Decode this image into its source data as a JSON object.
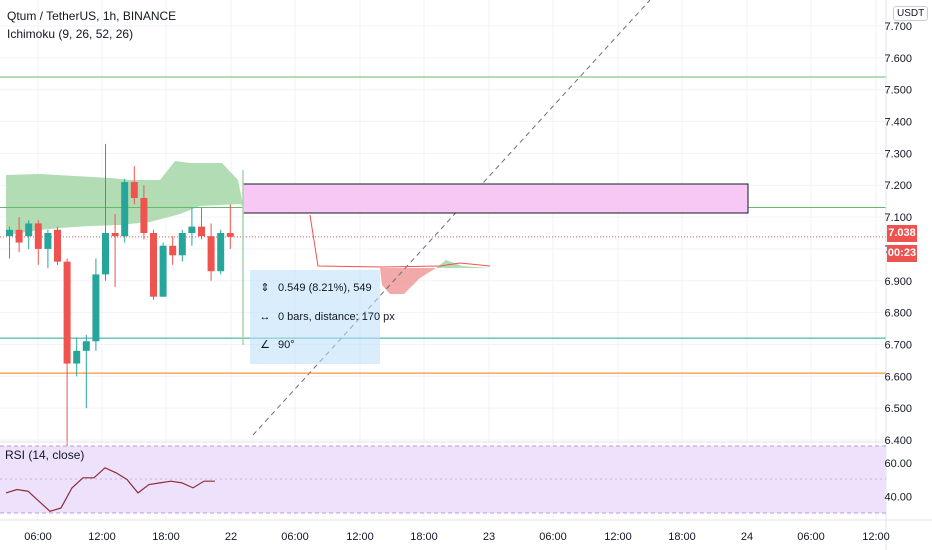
{
  "header": {
    "symbol_line": "Qtum / TetherUS, 1h, BINANCE",
    "indicator_label": "Ichimoku (9, 26, 52, 26)",
    "currency_badge": "USDT"
  },
  "price_axis": {
    "ticks": [
      "7.600",
      "7.500",
      "7.400",
      "7.300",
      "7.200",
      "7.100",
      "7.000",
      "6.900",
      "6.800",
      "6.700",
      "6.600",
      "6.500",
      "6.400"
    ],
    "top_tick": "7.700",
    "current_price": "7.038",
    "countdown": "00:23"
  },
  "time_axis": {
    "labels": [
      "06:00",
      "12:00",
      "18:00",
      "22",
      "06:00",
      "12:00",
      "18:00",
      "23",
      "06:00",
      "12:00",
      "18:00",
      "24",
      "06:00",
      "12:00"
    ]
  },
  "rsi": {
    "label": "RSI (14, close)",
    "ticks": [
      "60.00",
      "40.00"
    ]
  },
  "measure_tooltip": {
    "price_range": "0.549 (8.21%), 549",
    "bars_distance": "0 bars, distance: 170 px",
    "angle": "90°",
    "icons": [
      "price-range-icon",
      "bar-range-icon",
      "angle-icon"
    ]
  },
  "colors": {
    "up": "#26a69a",
    "down": "#ef5350",
    "cloud_bull": "#a5d6a7",
    "cloud_bear": "#ef9a9a",
    "rect_fill": "#f8c8f4",
    "rsi_bg": "#ede1fb",
    "rsi_line": "#8e2d3a",
    "hline_green": "#66bb6a",
    "hline_teal": "#26a69a",
    "hline_orange": "#f57c00"
  },
  "chart_data": {
    "type": "candlestick",
    "price_min": 6.4,
    "price_max": 7.7,
    "candles": [
      {
        "o": 7.04,
        "h": 7.07,
        "l": 6.97,
        "c": 7.06
      },
      {
        "o": 7.06,
        "h": 7.1,
        "l": 6.99,
        "c": 7.02
      },
      {
        "o": 7.04,
        "h": 7.09,
        "l": 7.0,
        "c": 7.08
      },
      {
        "o": 7.08,
        "h": 7.09,
        "l": 6.95,
        "c": 7.0
      },
      {
        "o": 7.0,
        "h": 7.06,
        "l": 6.94,
        "c": 7.05
      },
      {
        "o": 7.06,
        "h": 7.07,
        "l": 6.95,
        "c": 6.96
      },
      {
        "o": 6.96,
        "h": 6.97,
        "l": 6.38,
        "c": 6.64
      },
      {
        "o": 6.64,
        "h": 6.72,
        "l": 6.6,
        "c": 6.68
      },
      {
        "o": 6.68,
        "h": 6.73,
        "l": 6.5,
        "c": 6.71
      },
      {
        "o": 6.71,
        "h": 6.97,
        "l": 6.68,
        "c": 6.92
      },
      {
        "o": 6.92,
        "h": 7.33,
        "l": 6.9,
        "c": 7.05
      },
      {
        "o": 7.05,
        "h": 7.11,
        "l": 6.88,
        "c": 7.04
      },
      {
        "o": 7.04,
        "h": 7.22,
        "l": 7.02,
        "c": 7.21
      },
      {
        "o": 7.21,
        "h": 7.26,
        "l": 7.14,
        "c": 7.16
      },
      {
        "o": 7.16,
        "h": 7.2,
        "l": 7.03,
        "c": 7.05
      },
      {
        "o": 7.05,
        "h": 7.06,
        "l": 6.84,
        "c": 6.85
      },
      {
        "o": 6.85,
        "h": 7.02,
        "l": 6.85,
        "c": 7.01
      },
      {
        "o": 7.01,
        "h": 7.04,
        "l": 6.95,
        "c": 6.98
      },
      {
        "o": 6.98,
        "h": 7.06,
        "l": 6.96,
        "c": 7.05
      },
      {
        "o": 7.05,
        "h": 7.13,
        "l": 7.01,
        "c": 7.07
      },
      {
        "o": 7.07,
        "h": 7.13,
        "l": 7.03,
        "c": 7.04
      },
      {
        "o": 7.04,
        "h": 7.08,
        "l": 6.9,
        "c": 6.93
      },
      {
        "o": 6.93,
        "h": 7.06,
        "l": 6.92,
        "c": 7.05
      },
      {
        "o": 7.05,
        "h": 7.14,
        "l": 7.0,
        "c": 7.038
      }
    ],
    "horizontal_lines": [
      7.54,
      7.13,
      6.72,
      6.61
    ],
    "current_price_line": 7.038,
    "rsi_values": [
      42,
      44,
      43,
      37,
      31,
      33,
      45,
      51,
      51,
      57,
      54,
      50,
      42,
      47,
      48,
      49,
      48,
      45,
      49,
      49
    ]
  }
}
